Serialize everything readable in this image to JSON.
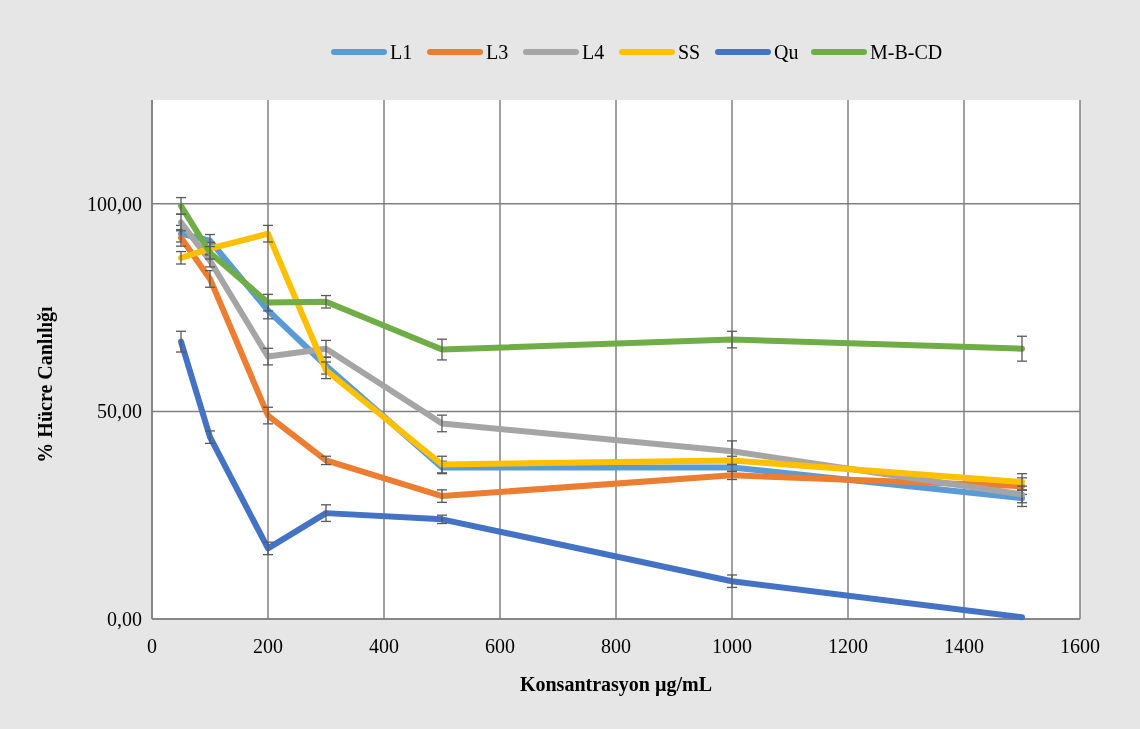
{
  "chart_data": {
    "type": "line",
    "xlabel": "Konsantrasyon µg/mL",
    "ylabel": "% Hücre Canlılığı",
    "x": [
      50,
      100,
      200,
      300,
      500,
      1000,
      1500
    ],
    "xlim": [
      0,
      1600
    ],
    "xticks": [
      0,
      200,
      400,
      600,
      800,
      1000,
      1200,
      1400,
      1600
    ],
    "ylim": [
      0,
      125
    ],
    "yticks": [
      {
        "value": 0,
        "label": "0,00"
      },
      {
        "value": 50,
        "label": "50,00"
      },
      {
        "value": 100,
        "label": "100,00"
      }
    ],
    "grid": true,
    "legend": "top",
    "marker": "none",
    "line_style": "solid",
    "series": [
      {
        "name": "L1",
        "color": "#5b9bd5",
        "values": [
          92.8,
          91.1,
          74.3,
          61,
          36.5,
          36.5,
          29.1
        ],
        "errors": [
          2,
          1.5,
          2,
          2,
          1.5,
          1,
          2
        ]
      },
      {
        "name": "L3",
        "color": "#ed7d31",
        "values": [
          91.8,
          81.9,
          49,
          38.2,
          29.6,
          34.6,
          32
        ],
        "errors": [
          2,
          2,
          2,
          1,
          1.5,
          1,
          2
        ]
      },
      {
        "name": "L4",
        "color": "#a5a5a5",
        "values": [
          95.5,
          86.3,
          63.2,
          65.1,
          47.1,
          40.4,
          30
        ],
        "errors": [
          2,
          1.5,
          2,
          2,
          2,
          2.5,
          2
        ]
      },
      {
        "name": "SS",
        "color": "#ffc000",
        "values": [
          87,
          89.2,
          92.8,
          59.9,
          37.2,
          38.2,
          33
        ],
        "errors": [
          1.5,
          1.5,
          2,
          2,
          2,
          1,
          2
        ]
      },
      {
        "name": "Qu",
        "color": "#4472c4",
        "values": [
          66.8,
          43.8,
          17,
          25.5,
          24,
          9.1,
          0.4
        ],
        "errors": [
          2.5,
          1.5,
          1.5,
          2,
          1,
          1.5,
          null
        ]
      },
      {
        "name": "M-B-CD",
        "color": "#70ad47",
        "values": [
          99.5,
          88.2,
          76.2,
          76.4,
          64.9,
          67.3,
          65.1
        ],
        "errors": [
          2,
          1.5,
          2,
          1.5,
          2.5,
          2,
          3
        ]
      }
    ]
  }
}
